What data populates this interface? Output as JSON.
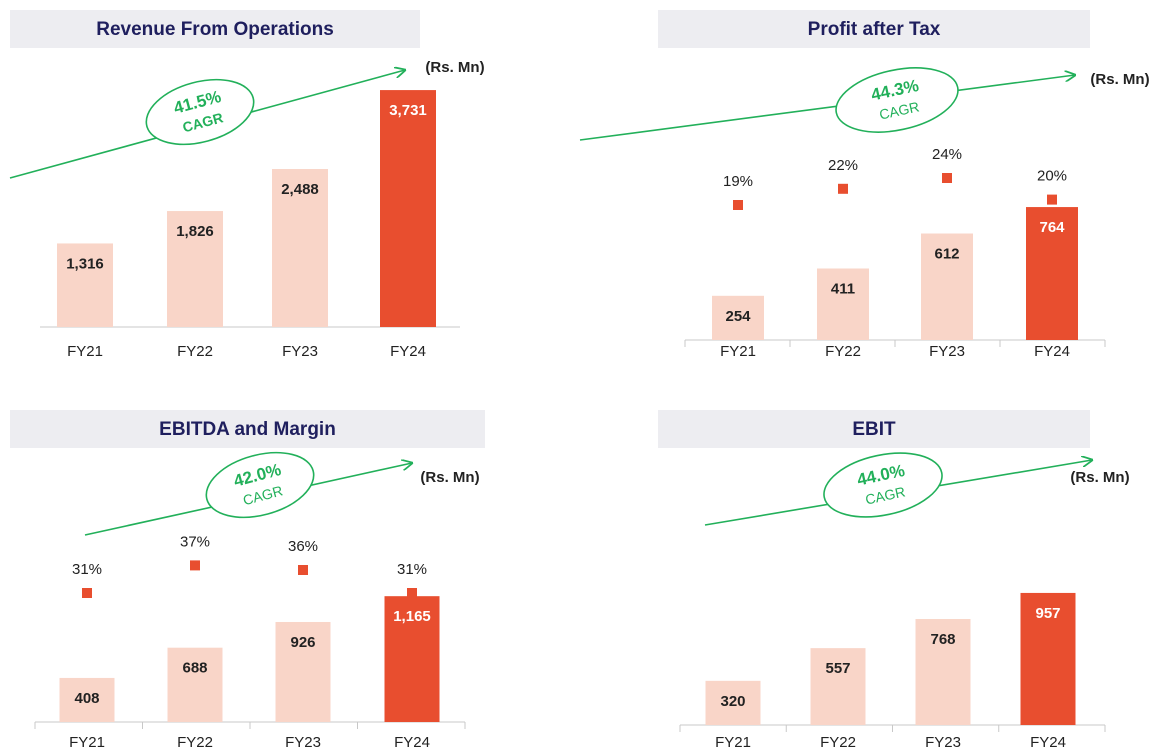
{
  "chart_data": [
    {
      "type": "bar",
      "title": "Revenue From Operations",
      "unit_label": "(Rs. Mn)",
      "cagr": "41.5%",
      "cagr_label": "CAGR",
      "categories": [
        "FY21",
        "FY22",
        "FY23",
        "FY24"
      ],
      "values": [
        1316,
        1826,
        2488,
        3731
      ],
      "value_labels": [
        "1,316",
        "1,826",
        "2,488",
        "3,731"
      ],
      "colors": [
        "#f9d5c8",
        "#f9d5c8",
        "#f9d5c8",
        "#e84e2f"
      ],
      "ylim": [
        0,
        4000
      ]
    },
    {
      "type": "bar",
      "title": "Profit after Tax",
      "unit_label": "(Rs. Mn)",
      "cagr": "44.3%",
      "cagr_label": "CAGR",
      "categories": [
        "FY21",
        "FY22",
        "FY23",
        "FY24"
      ],
      "values": [
        254,
        411,
        612,
        764
      ],
      "value_labels": [
        "254",
        "411",
        "612",
        "764"
      ],
      "colors": [
        "#f9d5c8",
        "#f9d5c8",
        "#f9d5c8",
        "#e84e2f"
      ],
      "ylim": [
        0,
        1000
      ],
      "margin": {
        "values": [
          19,
          22,
          24,
          20
        ],
        "value_labels": [
          "19%",
          "22%",
          "24%",
          "20%"
        ],
        "color": "#e84e2f"
      }
    },
    {
      "type": "bar",
      "title": "EBITDA and Margin",
      "unit_label": "(Rs. Mn)",
      "cagr": "42.0%",
      "cagr_label": "CAGR",
      "categories": [
        "FY21",
        "FY22",
        "FY23",
        "FY24"
      ],
      "values": [
        408,
        688,
        926,
        1165
      ],
      "value_labels": [
        "408",
        "688",
        "926",
        "1,165"
      ],
      "colors": [
        "#f9d5c8",
        "#f9d5c8",
        "#f9d5c8",
        "#e84e2f"
      ],
      "ylim": [
        0,
        1500
      ],
      "margin": {
        "values": [
          31,
          37,
          36,
          31
        ],
        "value_labels": [
          "31%",
          "37%",
          "36%",
          "31%"
        ],
        "color": "#e84e2f"
      }
    },
    {
      "type": "bar",
      "title": "EBIT",
      "unit_label": "(Rs. Mn)",
      "cagr": "44.0%",
      "cagr_label": "CAGR",
      "categories": [
        "FY21",
        "FY22",
        "FY23",
        "FY24"
      ],
      "values": [
        320,
        557,
        768,
        957
      ],
      "value_labels": [
        "320",
        "557",
        "768",
        "957"
      ],
      "colors": [
        "#f9d5c8",
        "#f9d5c8",
        "#f9d5c8",
        "#e84e2f"
      ],
      "ylim": [
        0,
        1000
      ]
    }
  ]
}
